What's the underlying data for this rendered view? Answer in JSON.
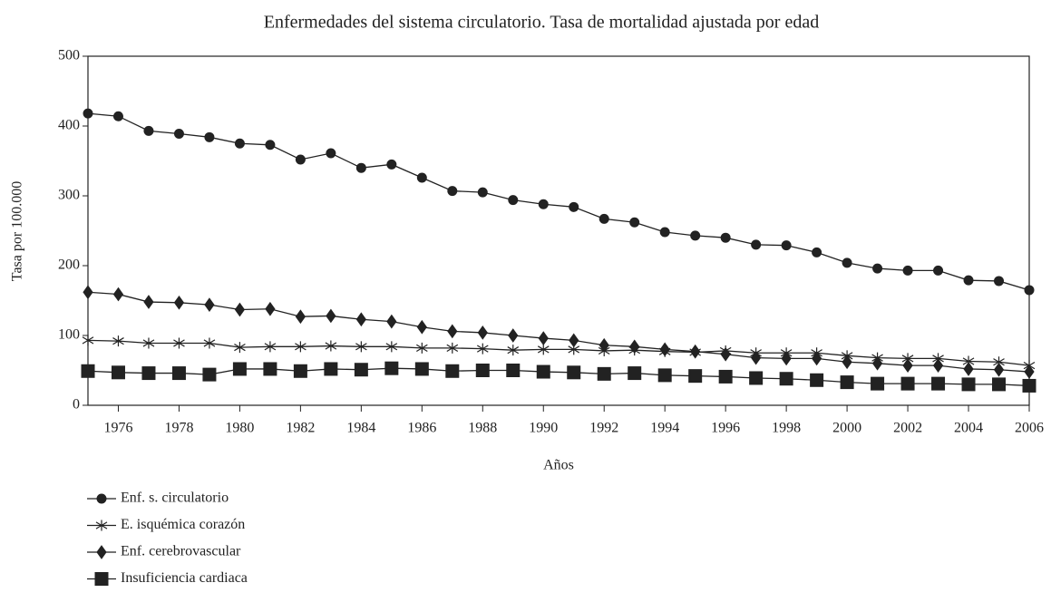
{
  "chart_data": {
    "type": "line",
    "title": "Enfermedades del sistema circulatorio. Tasa de mortalidad ajustada por edad",
    "x_label": "Años",
    "y_label": "Tasa por 100.000",
    "x": [
      1975,
      1976,
      1977,
      1978,
      1979,
      1980,
      1981,
      1982,
      1983,
      1984,
      1985,
      1986,
      1987,
      1988,
      1989,
      1990,
      1991,
      1992,
      1993,
      1994,
      1995,
      1996,
      1997,
      1998,
      1999,
      2000,
      2001,
      2002,
      2003,
      2004,
      2005,
      2006
    ],
    "xlim": [
      1975,
      2006
    ],
    "xticks": [
      1976,
      1978,
      1980,
      1982,
      1984,
      1986,
      1988,
      1990,
      1992,
      1994,
      1996,
      1998,
      2000,
      2002,
      2004,
      2006
    ],
    "ylim": [
      0,
      500
    ],
    "yticks": [
      0,
      100,
      200,
      300,
      400,
      500
    ],
    "legend": "bottom-left",
    "series": [
      {
        "name": "Enf. s. circulatorio",
        "color": "#222222",
        "marker": "circle",
        "values": [
          418,
          414,
          393,
          389,
          384,
          375,
          373,
          352,
          361,
          340,
          345,
          326,
          307,
          305,
          294,
          288,
          284,
          267,
          262,
          248,
          243,
          240,
          230,
          229,
          219,
          204,
          196,
          193,
          193,
          179,
          178,
          165
        ]
      },
      {
        "name": "E. isquémica corazón",
        "color": "#222222",
        "marker": "star",
        "values": [
          93,
          92,
          89,
          89,
          89,
          83,
          84,
          84,
          85,
          84,
          84,
          82,
          82,
          81,
          79,
          80,
          80,
          78,
          79,
          77,
          76,
          78,
          75,
          75,
          75,
          71,
          68,
          67,
          67,
          63,
          62,
          57
        ]
      },
      {
        "name": "Enf. cerebrovascular",
        "color": "#222222",
        "marker": "diamond",
        "values": [
          162,
          159,
          148,
          147,
          144,
          137,
          138,
          127,
          128,
          123,
          120,
          112,
          106,
          104,
          100,
          96,
          93,
          86,
          84,
          80,
          77,
          73,
          68,
          67,
          67,
          62,
          60,
          57,
          57,
          52,
          51,
          48
        ]
      },
      {
        "name": "Insuficiencia cardiaca",
        "color": "#222222",
        "marker": "square",
        "values": [
          49,
          47,
          46,
          46,
          44,
          52,
          52,
          49,
          52,
          51,
          53,
          52,
          49,
          50,
          50,
          48,
          47,
          45,
          46,
          43,
          42,
          41,
          39,
          38,
          36,
          33,
          31,
          31,
          31,
          30,
          30,
          28
        ]
      }
    ]
  }
}
